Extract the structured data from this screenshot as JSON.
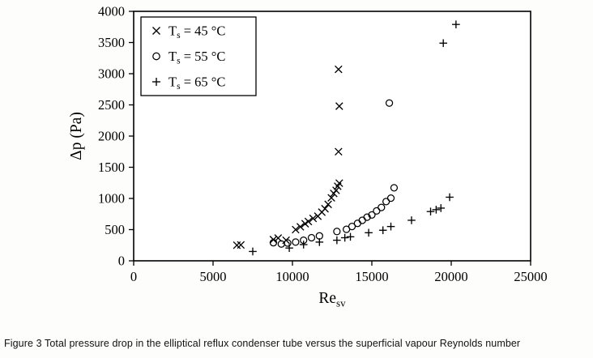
{
  "figure": {
    "caption": "Figure 3 Total pressure drop in the elliptical reflux condenser tube versus the superficial vapour Reynolds number"
  },
  "chart_data": {
    "type": "scatter",
    "title": "",
    "xlabel": {
      "base": "Re",
      "sub": "sv"
    },
    "ylabel": "Δp (Pa)",
    "xlim": [
      0,
      25000
    ],
    "ylim": [
      0,
      4000
    ],
    "xticks": [
      0,
      5000,
      10000,
      15000,
      20000,
      25000
    ],
    "yticks": [
      0,
      500,
      1000,
      1500,
      2000,
      2500,
      3000,
      3500,
      4000
    ],
    "grid": false,
    "legend_position": "top-left",
    "axis_color": "#000000",
    "marker_color": "#000000",
    "background": "#ffffff",
    "series": [
      {
        "name": {
          "base": "T",
          "sub": "s",
          "rest": " = 45 °C"
        },
        "marker": "x",
        "points": [
          [
            6500,
            250
          ],
          [
            6750,
            255
          ],
          [
            8800,
            340
          ],
          [
            9100,
            365
          ],
          [
            9600,
            330
          ],
          [
            10200,
            500
          ],
          [
            10500,
            545
          ],
          [
            10800,
            595
          ],
          [
            11000,
            630
          ],
          [
            11300,
            680
          ],
          [
            11600,
            715
          ],
          [
            11850,
            780
          ],
          [
            12050,
            835
          ],
          [
            12250,
            905
          ],
          [
            12450,
            1010
          ],
          [
            12600,
            1080
          ],
          [
            12750,
            1130
          ],
          [
            12850,
            1195
          ],
          [
            12950,
            1245
          ],
          [
            12900,
            1750
          ],
          [
            12950,
            2480
          ],
          [
            12900,
            3070
          ]
        ]
      },
      {
        "name": {
          "base": "T",
          "sub": "s",
          "rest": " = 55 °C"
        },
        "marker": "o",
        "points": [
          [
            8800,
            290
          ],
          [
            9300,
            270
          ],
          [
            9700,
            285
          ],
          [
            10200,
            300
          ],
          [
            10700,
            330
          ],
          [
            11200,
            370
          ],
          [
            11700,
            400
          ],
          [
            12800,
            470
          ],
          [
            13400,
            505
          ],
          [
            13750,
            550
          ],
          [
            14100,
            600
          ],
          [
            14400,
            650
          ],
          [
            14700,
            700
          ],
          [
            15000,
            735
          ],
          [
            15300,
            800
          ],
          [
            15600,
            855
          ],
          [
            15900,
            950
          ],
          [
            16200,
            1005
          ],
          [
            16400,
            1170
          ],
          [
            16100,
            2530
          ]
        ]
      },
      {
        "name": {
          "base": "T",
          "sub": "s",
          "rest": " = 65 °C"
        },
        "marker": "+",
        "points": [
          [
            7500,
            150
          ],
          [
            9800,
            205
          ],
          [
            10700,
            260
          ],
          [
            11700,
            300
          ],
          [
            12800,
            330
          ],
          [
            13300,
            370
          ],
          [
            13650,
            385
          ],
          [
            14800,
            450
          ],
          [
            15700,
            490
          ],
          [
            16200,
            550
          ],
          [
            17500,
            650
          ],
          [
            18700,
            790
          ],
          [
            19050,
            820
          ],
          [
            19350,
            845
          ],
          [
            19900,
            1020
          ],
          [
            19500,
            3490
          ],
          [
            20300,
            3790
          ]
        ]
      }
    ]
  }
}
